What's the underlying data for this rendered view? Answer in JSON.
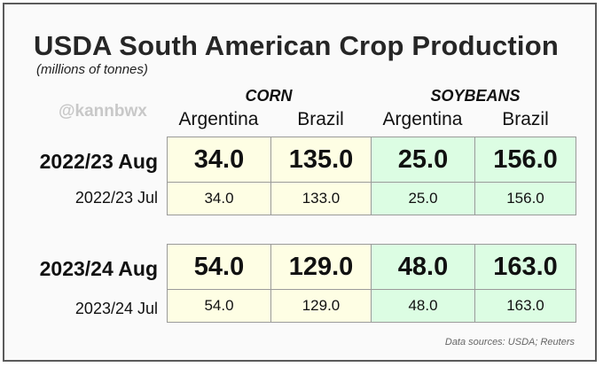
{
  "title": "USDA South American Crop Production",
  "subtitle": "(millions of tonnes)",
  "watermark": "@kannbwx",
  "groups": {
    "corn": "CORN",
    "soybeans": "SOYBEANS"
  },
  "columns": [
    "Argentina",
    "Brazil",
    "Argentina",
    "Brazil"
  ],
  "rows": [
    {
      "label": "2022/23 Aug",
      "values": [
        "34.0",
        "135.0",
        "25.0",
        "156.0"
      ]
    },
    {
      "label": "2022/23 Jul",
      "values": [
        "34.0",
        "133.0",
        "25.0",
        "156.0"
      ]
    },
    {
      "label": "2023/24 Aug",
      "values": [
        "54.0",
        "129.0",
        "48.0",
        "163.0"
      ]
    },
    {
      "label": "2023/24 Jul",
      "values": [
        "54.0",
        "129.0",
        "48.0",
        "163.0"
      ]
    }
  ],
  "source": "Data sources: USDA; Reuters",
  "colors": {
    "corn_fill": "#fefee4",
    "soy_fill": "#dcfde3",
    "border": "#9a9a9a"
  }
}
